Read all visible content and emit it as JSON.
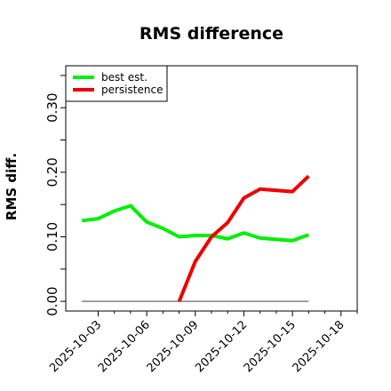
{
  "chart_data": {
    "type": "line",
    "title": "RMS difference",
    "xlabel": "",
    "ylabel": "RMS diff.",
    "x": [
      "2025-10-02",
      "2025-10-03",
      "2025-10-04",
      "2025-10-05",
      "2025-10-06",
      "2025-10-07",
      "2025-10-08",
      "2025-10-09",
      "2025-10-10",
      "2025-10-11",
      "2025-10-12",
      "2025-10-13",
      "2025-10-14",
      "2025-10-15",
      "2025-10-16"
    ],
    "xtick_labels": [
      "2025-10-03",
      "2025-10-06",
      "2025-10-09",
      "2025-10-12",
      "2025-10-15",
      "2025-10-18"
    ],
    "xlim": [
      "2025-10-01",
      "2025-10-19"
    ],
    "ylim": [
      -0.015,
      0.365
    ],
    "yticks": [
      0.0,
      0.1,
      0.2,
      0.3
    ],
    "ytick_labels": [
      "0.00",
      "0.10",
      "0.20",
      "0.30"
    ],
    "grid": false,
    "legend_position": "top-left",
    "series": [
      {
        "name": "best est.",
        "color": "#00ee00",
        "values": [
          0.125,
          0.128,
          0.14,
          0.148,
          0.123,
          0.113,
          0.1,
          0.102,
          0.102,
          0.097,
          0.106,
          0.098,
          0.096,
          0.094,
          0.103
        ]
      },
      {
        "name": "persistence",
        "color": "#ee0000",
        "values": [
          null,
          null,
          null,
          null,
          null,
          null,
          0.0,
          0.062,
          0.1,
          0.122,
          0.16,
          0.174,
          0.172,
          0.17,
          0.194
        ]
      },
      {
        "name": "",
        "color": "#7f7f7f",
        "values": [
          0.0,
          0.0,
          0.0,
          0.0,
          0.0,
          0.0,
          0.0,
          0.0,
          0.0,
          0.0,
          0.0,
          0.0,
          0.0,
          0.0,
          0.0
        ]
      }
    ]
  }
}
